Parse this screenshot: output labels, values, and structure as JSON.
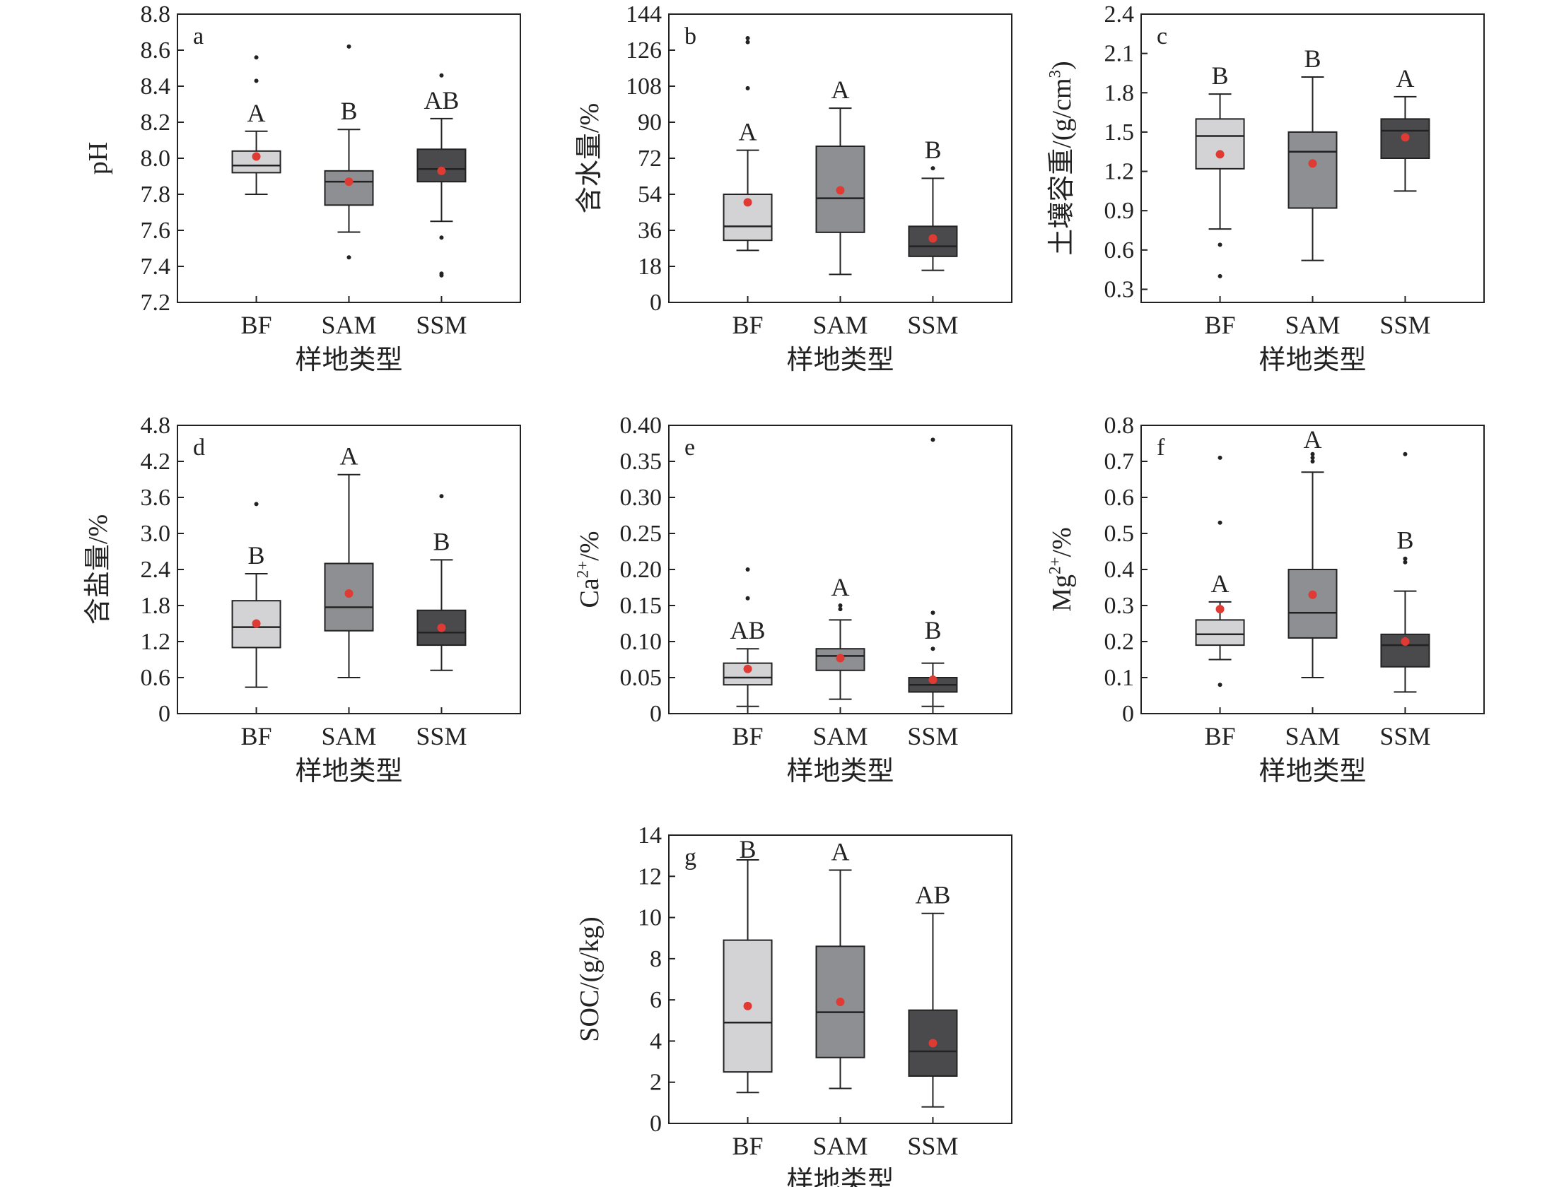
{
  "figure": {
    "colors": {
      "BF": "#d3d3d5",
      "SAM": "#8e8f92",
      "SSM": "#4a4a4c",
      "mean": "#e03a34",
      "outlier": "#222222"
    }
  },
  "chart_data": [
    {
      "type": "box",
      "panel": "a",
      "xlabel": "样地类型",
      "ylabel": "pH",
      "ylim": [
        7.2,
        8.8
      ],
      "yticks": [
        "7.2",
        "7.4",
        "7.6",
        "7.8",
        "8.0",
        "8.2",
        "8.4",
        "8.6",
        "8.8"
      ],
      "categories": [
        "BF",
        "SAM",
        "SSM"
      ],
      "boxes": [
        {
          "category": "BF",
          "min": 7.8,
          "q1": 7.92,
          "median": 7.96,
          "q3": 8.04,
          "max": 8.15,
          "mean": 8.01,
          "outliers": [
            8.43,
            8.56
          ],
          "sig": "A"
        },
        {
          "category": "SAM",
          "min": 7.59,
          "q1": 7.74,
          "median": 7.87,
          "q3": 7.93,
          "max": 8.16,
          "mean": 7.87,
          "outliers": [
            8.62,
            7.45
          ],
          "sig": "B"
        },
        {
          "category": "SSM",
          "min": 7.65,
          "q1": 7.87,
          "median": 7.94,
          "q3": 8.05,
          "max": 8.22,
          "mean": 7.93,
          "outliers": [
            8.46,
            7.56,
            7.36,
            7.35
          ],
          "sig": "AB"
        }
      ]
    },
    {
      "type": "box",
      "panel": "b",
      "xlabel": "样地类型",
      "ylabel": "含水量/%",
      "ylim": [
        0,
        144
      ],
      "yticks": [
        "0",
        "18",
        "36",
        "54",
        "72",
        "90",
        "108",
        "126",
        "144"
      ],
      "categories": [
        "BF",
        "SAM",
        "SSM"
      ],
      "boxes": [
        {
          "category": "BF",
          "min": 26,
          "q1": 31,
          "median": 38,
          "q3": 54,
          "max": 76,
          "mean": 50,
          "outliers": [
            107,
            130,
            132
          ],
          "sig": "A"
        },
        {
          "category": "SAM",
          "min": 14,
          "q1": 35,
          "median": 52,
          "q3": 78,
          "max": 97,
          "mean": 56,
          "outliers": [],
          "sig": "A"
        },
        {
          "category": "SSM",
          "min": 16,
          "q1": 23,
          "median": 28,
          "q3": 38,
          "max": 62,
          "mean": 32,
          "outliers": [
            67
          ],
          "sig": "B"
        }
      ]
    },
    {
      "type": "box",
      "panel": "c",
      "xlabel": "样地类型",
      "ylabel": "土壤容重/(g/cm³)",
      "ylim": [
        0.2,
        2.4
      ],
      "yticks": [
        "0.3",
        "0.6",
        "0.9",
        "1.2",
        "1.5",
        "1.8",
        "2.1",
        "2.4"
      ],
      "categories": [
        "BF",
        "SAM",
        "SSM"
      ],
      "boxes": [
        {
          "category": "BF",
          "min": 0.76,
          "q1": 1.22,
          "median": 1.47,
          "q3": 1.6,
          "max": 1.79,
          "mean": 1.33,
          "outliers": [
            0.64,
            0.4
          ],
          "sig": "B"
        },
        {
          "category": "SAM",
          "min": 0.52,
          "q1": 0.92,
          "median": 1.35,
          "q3": 1.5,
          "max": 1.92,
          "mean": 1.26,
          "outliers": [],
          "sig": "B"
        },
        {
          "category": "SSM",
          "min": 1.05,
          "q1": 1.3,
          "median": 1.51,
          "q3": 1.6,
          "max": 1.77,
          "mean": 1.46,
          "outliers": [],
          "sig": "A"
        }
      ]
    },
    {
      "type": "box",
      "panel": "d",
      "xlabel": "样地类型",
      "ylabel": "含盐量/%",
      "ylim": [
        0,
        4.8
      ],
      "yticks": [
        "0",
        "0.6",
        "1.2",
        "1.8",
        "2.4",
        "3.0",
        "3.6",
        "4.2",
        "4.8"
      ],
      "categories": [
        "BF",
        "SAM",
        "SSM"
      ],
      "boxes": [
        {
          "category": "BF",
          "min": 0.44,
          "q1": 1.1,
          "median": 1.44,
          "q3": 1.88,
          "max": 2.33,
          "mean": 1.5,
          "outliers": [
            3.49
          ],
          "sig": "B"
        },
        {
          "category": "SAM",
          "min": 0.6,
          "q1": 1.38,
          "median": 1.77,
          "q3": 2.5,
          "max": 3.98,
          "mean": 2.0,
          "outliers": [],
          "sig": "A"
        },
        {
          "category": "SSM",
          "min": 0.72,
          "q1": 1.14,
          "median": 1.35,
          "q3": 1.72,
          "max": 2.56,
          "mean": 1.43,
          "outliers": [
            3.62
          ],
          "sig": "B"
        }
      ]
    },
    {
      "type": "box",
      "panel": "e",
      "xlabel": "样地类型",
      "ylabel": "Ca²⁺/%",
      "ylim": [
        0,
        0.4
      ],
      "yticks": [
        "0",
        "0.05",
        "0.10",
        "0.15",
        "0.20",
        "0.25",
        "0.30",
        "0.35",
        "0.40"
      ],
      "categories": [
        "BF",
        "SAM",
        "SSM"
      ],
      "boxes": [
        {
          "category": "BF",
          "min": 0.01,
          "q1": 0.04,
          "median": 0.05,
          "q3": 0.07,
          "max": 0.09,
          "mean": 0.062,
          "outliers": [
            0.16,
            0.2
          ],
          "sig": "AB"
        },
        {
          "category": "SAM",
          "min": 0.02,
          "q1": 0.06,
          "median": 0.08,
          "q3": 0.09,
          "max": 0.13,
          "mean": 0.077,
          "outliers": [
            0.145,
            0.15
          ],
          "sig": "A"
        },
        {
          "category": "SSM",
          "min": 0.01,
          "q1": 0.03,
          "median": 0.04,
          "q3": 0.05,
          "max": 0.07,
          "mean": 0.047,
          "outliers": [
            0.09,
            0.14,
            0.38
          ],
          "sig": "B"
        }
      ]
    },
    {
      "type": "box",
      "panel": "f",
      "xlabel": "样地类型",
      "ylabel": "Mg²⁺/%",
      "ylim": [
        0,
        0.8
      ],
      "yticks": [
        "0",
        "0.1",
        "0.2",
        "0.3",
        "0.4",
        "0.5",
        "0.6",
        "0.7",
        "0.8"
      ],
      "categories": [
        "BF",
        "SAM",
        "SSM"
      ],
      "boxes": [
        {
          "category": "BF",
          "min": 0.15,
          "q1": 0.19,
          "median": 0.22,
          "q3": 0.26,
          "max": 0.31,
          "mean": 0.29,
          "outliers": [
            0.71,
            0.53,
            0.08
          ],
          "sig": "A"
        },
        {
          "category": "SAM",
          "min": 0.1,
          "q1": 0.21,
          "median": 0.28,
          "q3": 0.4,
          "max": 0.67,
          "mean": 0.33,
          "outliers": [
            0.7,
            0.71,
            0.72
          ],
          "sig": "A"
        },
        {
          "category": "SSM",
          "min": 0.06,
          "q1": 0.13,
          "median": 0.19,
          "q3": 0.22,
          "max": 0.34,
          "mean": 0.2,
          "outliers": [
            0.42,
            0.43,
            0.72
          ],
          "sig": "B"
        }
      ]
    },
    {
      "type": "box",
      "panel": "g",
      "xlabel": "样地类型",
      "ylabel": "SOC/(g/kg)",
      "ylim": [
        0,
        14
      ],
      "yticks": [
        "0",
        "2",
        "4",
        "6",
        "8",
        "10",
        "12",
        "14"
      ],
      "categories": [
        "BF",
        "SAM",
        "SSM"
      ],
      "boxes": [
        {
          "category": "BF",
          "min": 1.5,
          "q1": 2.5,
          "median": 4.9,
          "q3": 8.9,
          "max": 12.8,
          "mean": 5.7,
          "outliers": [],
          "sig": "B"
        },
        {
          "category": "SAM",
          "min": 1.7,
          "q1": 3.2,
          "median": 5.4,
          "q3": 8.6,
          "max": 12.3,
          "mean": 5.9,
          "outliers": [],
          "sig": "A"
        },
        {
          "category": "SSM",
          "min": 0.8,
          "q1": 2.3,
          "median": 3.5,
          "q3": 5.5,
          "max": 10.2,
          "mean": 3.9,
          "outliers": [],
          "sig": "AB"
        }
      ]
    }
  ]
}
